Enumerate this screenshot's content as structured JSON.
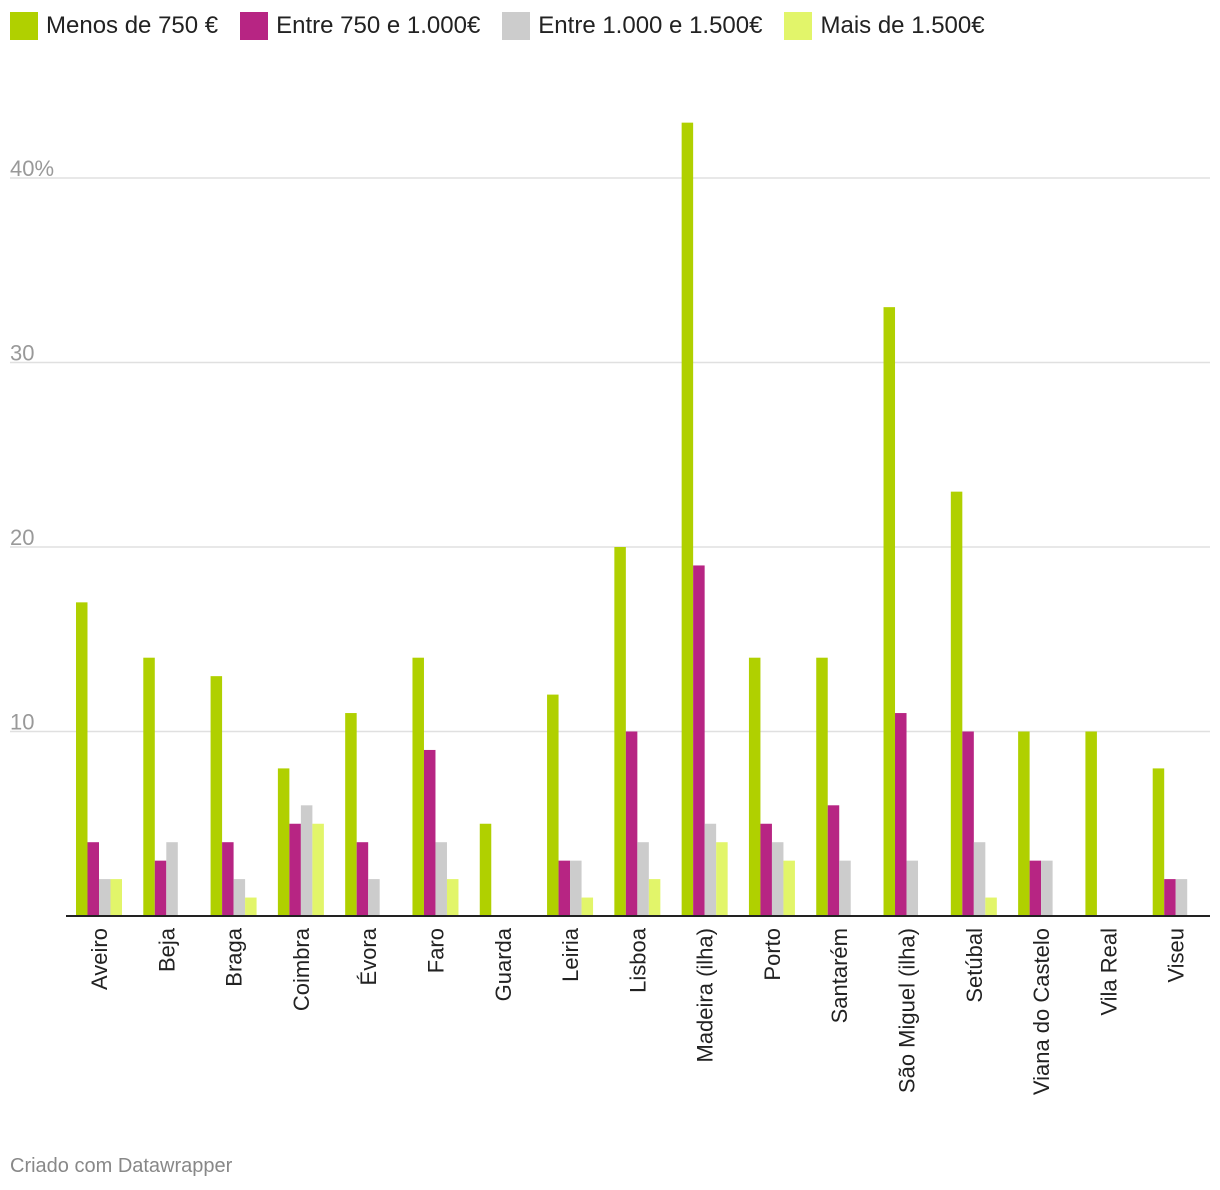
{
  "chart_data": {
    "type": "bar",
    "categories": [
      "Aveiro",
      "Beja",
      "Braga",
      "Coimbra",
      "Évora",
      "Faro",
      "Guarda",
      "Leiria",
      "Lisboa",
      "Madeira (ilha)",
      "Porto",
      "Santarém",
      "São Miguel (ilha)",
      "Setúbal",
      "Viana do Castelo",
      "Vila Real",
      "Viseu"
    ],
    "series": [
      {
        "name": "Menos de 750 €",
        "color": "#b0d000",
        "values": [
          17,
          14,
          13,
          8,
          11,
          14,
          5,
          12,
          20,
          43,
          14,
          14,
          33,
          23,
          10,
          10,
          8
        ]
      },
      {
        "name": "Entre 750 e 1.000€",
        "color": "#b72583",
        "values": [
          4,
          3,
          4,
          5,
          4,
          9,
          0,
          3,
          10,
          19,
          5,
          6,
          11,
          10,
          3,
          0,
          2
        ]
      },
      {
        "name": "Entre 1.000 e 1.500€",
        "color": "#cccccc",
        "values": [
          2,
          4,
          2,
          6,
          2,
          4,
          0,
          3,
          4,
          5,
          4,
          3,
          3,
          4,
          3,
          0,
          2
        ]
      },
      {
        "name": "Mais de 1.500€",
        "color": "#e2f56a",
        "values": [
          2,
          0,
          1,
          5,
          0,
          2,
          0,
          1,
          2,
          4,
          3,
          0,
          0,
          1,
          0,
          0,
          0
        ]
      }
    ],
    "y_ticks": [
      {
        "value": 10,
        "label": "10"
      },
      {
        "value": 20,
        "label": "20"
      },
      {
        "value": 30,
        "label": "30"
      },
      {
        "value": 40,
        "label": "40%"
      }
    ],
    "ylim": [
      0,
      44
    ],
    "grid": true,
    "legend_position": "top-left"
  },
  "footer": {
    "credit": "Criado com Datawrapper"
  }
}
